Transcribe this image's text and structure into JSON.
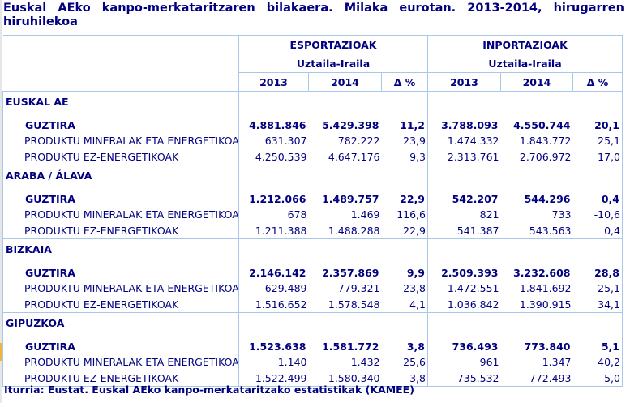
{
  "title": "Euskal AEko kanpo-merkataritzaren bilakaera. Milaka eurotan. 2013-2014, hirugarren hiruhilekoa",
  "header": {
    "groups": [
      {
        "label": "ESPORTAZIOAK",
        "period": "Uztaila-Iraila"
      },
      {
        "label": "INPORTAZIOAK",
        "period": "Uztaila-Iraila"
      }
    ],
    "columns": [
      "2013",
      "2014",
      "Δ %",
      "2013",
      "2014",
      "Δ %"
    ]
  },
  "sections": [
    {
      "name": "EUSKAL AE",
      "rows": [
        {
          "label": "GUZTIRA",
          "values": [
            "4.881.846",
            "5.429.398",
            "11,2",
            "3.788.093",
            "4.550.744",
            "20,1"
          ]
        },
        {
          "label": "PRODUKTU MINERALAK ETA ENERGETIKOAK",
          "values": [
            "631.307",
            "782.222",
            "23,9",
            "1.474.332",
            "1.843.772",
            "25,1"
          ]
        },
        {
          "label": "PRODUKTU EZ-ENERGETIKOAK",
          "values": [
            "4.250.539",
            "4.647.176",
            "9,3",
            "2.313.761",
            "2.706.972",
            "17,0"
          ]
        }
      ]
    },
    {
      "name": "ARABA / ÁLAVA",
      "rows": [
        {
          "label": "GUZTIRA",
          "values": [
            "1.212.066",
            "1.489.757",
            "22,9",
            "542.207",
            "544.296",
            "0,4"
          ]
        },
        {
          "label": "PRODUKTU MINERALAK ETA ENERGETIKOAK",
          "values": [
            "678",
            "1.469",
            "116,6",
            "821",
            "733",
            "-10,6"
          ]
        },
        {
          "label": "PRODUKTU EZ-ENERGETIKOAK",
          "values": [
            "1.211.388",
            "1.488.288",
            "22,9",
            "541.387",
            "543.563",
            "0,4"
          ]
        }
      ]
    },
    {
      "name": "BIZKAIA",
      "rows": [
        {
          "label": "GUZTIRA",
          "values": [
            "2.146.142",
            "2.357.869",
            "9,9",
            "2.509.393",
            "3.232.608",
            "28,8"
          ]
        },
        {
          "label": "PRODUKTU MINERALAK ETA ENERGETIKOAK",
          "values": [
            "629.489",
            "779.321",
            "23,8",
            "1.472.551",
            "1.841.692",
            "25,1"
          ]
        },
        {
          "label": "PRODUKTU EZ-ENERGETIKOAK",
          "values": [
            "1.516.652",
            "1.578.548",
            "4,1",
            "1.036.842",
            "1.390.915",
            "34,1"
          ]
        }
      ]
    },
    {
      "name": "GIPUZKOA",
      "rows": [
        {
          "label": "GUZTIRA",
          "values": [
            "1.523.638",
            "1.581.772",
            "3,8",
            "736.493",
            "773.840",
            "5,1"
          ]
        },
        {
          "label": "PRODUKTU MINERALAK ETA ENERGETIKOAK",
          "values": [
            "1.140",
            "1.432",
            "25,6",
            "961",
            "1.347",
            "40,2"
          ]
        },
        {
          "label": "PRODUKTU EZ-ENERGETIKOAK",
          "values": [
            "1.522.499",
            "1.580.340",
            "3,8",
            "735.532",
            "772.493",
            "5,0"
          ]
        }
      ]
    }
  ],
  "footer": "Iturria: Eustat. Euskal AEko kanpo-merkataritzako estatistikak (KAMEE)",
  "colors": {
    "text": "#000080",
    "grid": "#a9c7e8"
  }
}
